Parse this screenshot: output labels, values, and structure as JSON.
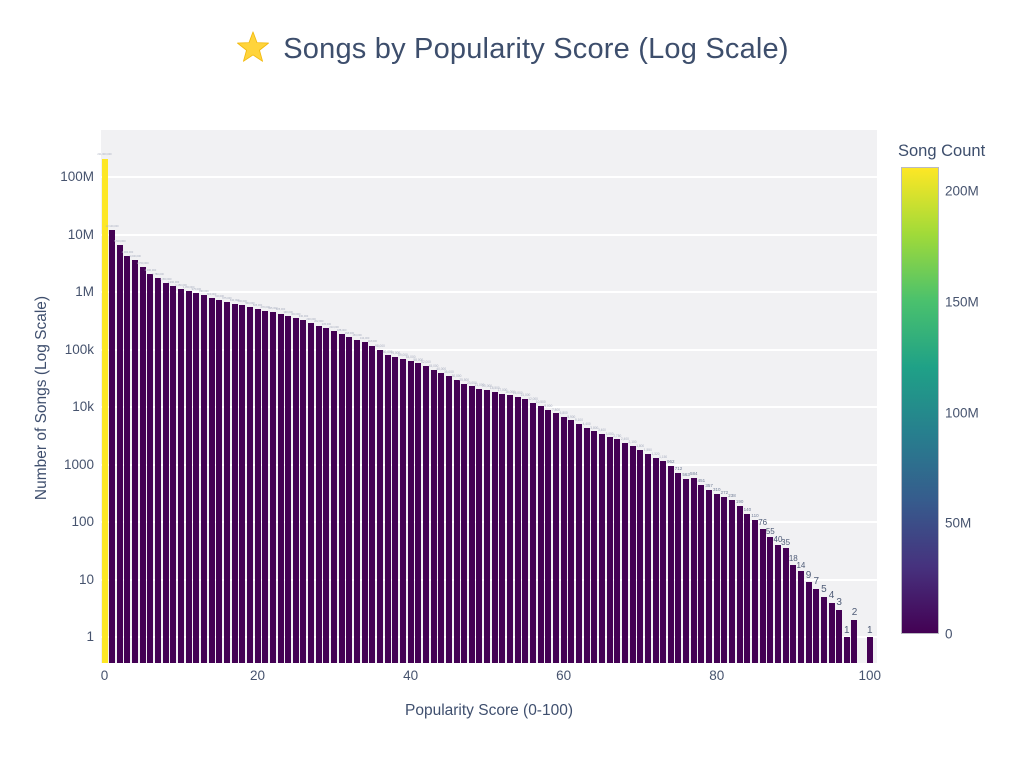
{
  "title": {
    "text": "Songs by Popularity Score (Log Scale)",
    "star_icon": "star",
    "star_color": "#FFD43B",
    "title_color": "#3d4e6c"
  },
  "chart_data": {
    "type": "bar",
    "title": "Songs by Popularity Score (Log Scale)",
    "xlabel": "Popularity Score (0-100)",
    "ylabel": "Number of Songs (Log Scale)",
    "y_scale": "log",
    "x_is_score_index": true,
    "score_min": 0,
    "score_max": 100,
    "values": [
      211000000,
      12100000,
      6500000,
      4300000,
      3600000,
      2700000,
      2100000,
      1780000,
      1450000,
      1260000,
      1150000,
      1050000,
      975000,
      890000,
      800000,
      740000,
      675000,
      630000,
      590000,
      550000,
      505000,
      470000,
      445000,
      425000,
      390000,
      360000,
      330000,
      290000,
      262000,
      235000,
      210000,
      188000,
      168000,
      150000,
      134000,
      118000,
      98000,
      80000,
      74000,
      69000,
      64000,
      58000,
      52000,
      45000,
      40000,
      35000,
      30000,
      25500,
      23000,
      21000,
      20000,
      18500,
      17000,
      16000,
      15000,
      14000,
      12000,
      10500,
      9000,
      7800,
      6800,
      5900,
      5100,
      4400,
      3800,
      3400,
      3000,
      2750,
      2400,
      2100,
      1800,
      1550,
      1320,
      1150,
      962,
      712,
      563,
      584,
      451,
      357,
      310,
      272,
      238,
      190,
      140,
      110,
      76,
      55,
      40,
      35,
      18,
      14,
      9,
      7,
      5,
      4,
      3,
      1,
      2,
      0,
      1
    ],
    "x_tick_values": [
      0,
      20,
      40,
      60,
      80,
      100
    ],
    "x_tick_labels": [
      "0",
      "20",
      "40",
      "60",
      "80",
      "100"
    ],
    "y_tick_values": [
      1,
      10,
      100,
      1000,
      10000,
      100000,
      1000000,
      10000000,
      100000000
    ],
    "y_tick_labels": [
      "1",
      "10",
      "100",
      "1000",
      "10k",
      "100k",
      "1M",
      "10M",
      "100M"
    ],
    "ylim_log10": [
      -0.45,
      8.82
    ],
    "grid": "horizontal-white",
    "plot_bg": "#f1f1f3",
    "bar_color_default": "#440154",
    "bar_color_max": "#fde725",
    "bar_label_color": "#4f5c77",
    "colorbar": {
      "title": "Song Count",
      "tick_values": [
        0,
        50000000,
        100000000,
        150000000,
        200000000
      ],
      "tick_labels": [
        "0",
        "50M",
        "100M",
        "150M",
        "200M"
      ],
      "max_value": 211000000,
      "colorscale_name": "viridis",
      "colorscale_stops": [
        "#440154",
        "#46327e",
        "#365c8d",
        "#277f8e",
        "#1fa187",
        "#4ac16d",
        "#a0da39",
        "#fde725"
      ]
    }
  }
}
